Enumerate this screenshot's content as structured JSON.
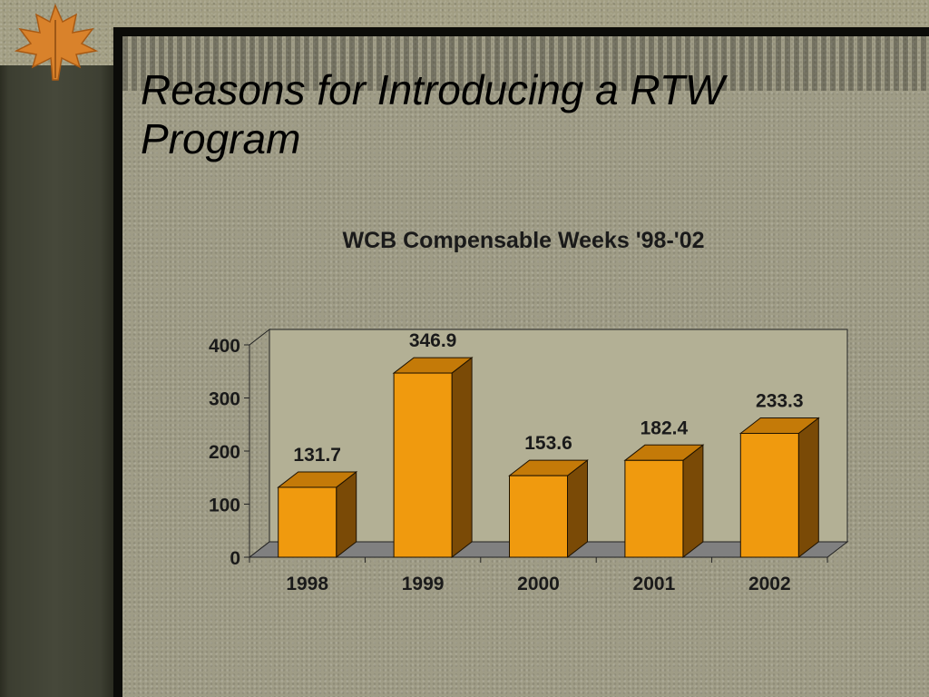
{
  "slide": {
    "title_line1": "Reasons for Introducing a RTW",
    "title_line2": "Program"
  },
  "colors": {
    "bar_front": "#f09a0e",
    "bar_top": "#c47a08",
    "bar_side": "#7a4a06",
    "plot_wall": "#b3b095",
    "floor": "#808080"
  },
  "chart_data": {
    "type": "bar",
    "title": "WCB Compensable Weeks '98-'02",
    "categories": [
      "1998",
      "1999",
      "2000",
      "2001",
      "2002"
    ],
    "values": [
      131.7,
      346.9,
      153.6,
      182.4,
      233.3
    ],
    "value_labels": [
      "131.7",
      "346.9",
      "153.6",
      "182.4",
      "233.3"
    ],
    "ylim": [
      0,
      400
    ],
    "yticks": [
      "0",
      "100",
      "200",
      "300",
      "400"
    ],
    "xlabel": "",
    "ylabel": "",
    "grid": false,
    "legend": "none",
    "style": "3d"
  }
}
